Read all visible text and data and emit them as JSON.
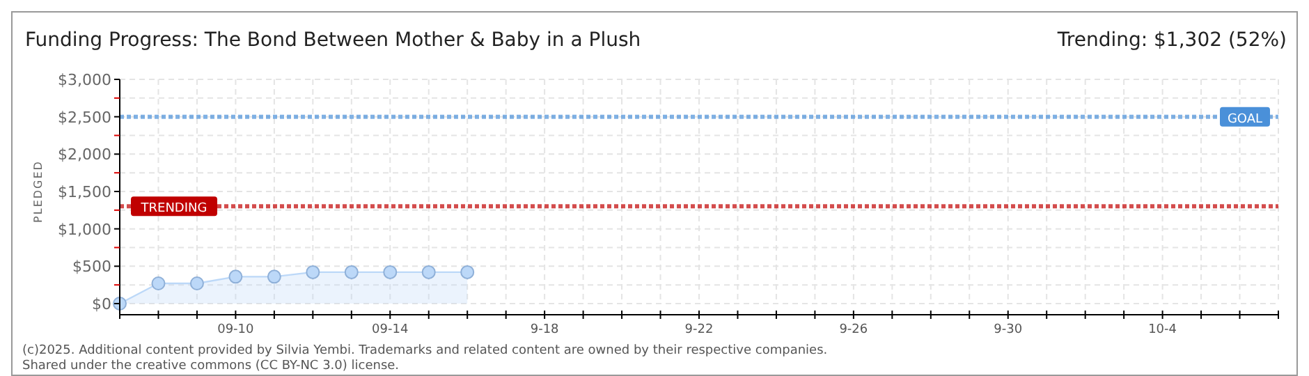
{
  "chart_data": {
    "type": "area",
    "title": "Funding Progress: The Bond Between Mother & Baby in a Plush",
    "subtitle": "Trending:  $1,302 (52%)",
    "ylabel": "PLEDGED",
    "x": [
      "--09-07",
      "--09-08",
      "--09-09",
      "--09-10",
      "--09-11",
      "--09-12",
      "--09-13",
      "--09-14",
      "--09-15",
      "--09-16"
    ],
    "series": [
      {
        "color": "#bcd8f8",
        "values": [
          0,
          270,
          270,
          360,
          360,
          420,
          420,
          420,
          420,
          420
        ]
      }
    ],
    "xlim": [
      "--09-07",
      "--10-07"
    ],
    "xticks": [
      {
        "value": "--09-07",
        "label": null
      },
      {
        "value": "--09-08",
        "label": null
      },
      {
        "value": "--09-09",
        "label": null
      },
      {
        "value": "--09-10",
        "label": "09-10"
      },
      {
        "value": "--09-11",
        "label": null
      },
      {
        "value": "--09-12",
        "label": null
      },
      {
        "value": "--09-13",
        "label": null
      },
      {
        "value": "--09-14",
        "label": "09-14"
      },
      {
        "value": "--09-15",
        "label": null
      },
      {
        "value": "--09-16",
        "label": null
      },
      {
        "value": "--09-17",
        "label": null
      },
      {
        "value": "--09-18",
        "label": "9-18"
      },
      {
        "value": "--09-19",
        "label": null
      },
      {
        "value": "--09-20",
        "label": null
      },
      {
        "value": "--09-21",
        "label": null
      },
      {
        "value": "--09-22",
        "label": "9-22"
      },
      {
        "value": "--09-23",
        "label": null
      },
      {
        "value": "--09-24",
        "label": null
      },
      {
        "value": "--09-25",
        "label": null
      },
      {
        "value": "--09-26",
        "label": "9-26"
      },
      {
        "value": "--09-27",
        "label": null
      },
      {
        "value": "--09-28",
        "label": null
      },
      {
        "value": "--09-29",
        "label": null
      },
      {
        "value": "--09-30",
        "label": "9-30"
      },
      {
        "value": "--10-01",
        "label": null
      },
      {
        "value": "--10-02",
        "label": null
      },
      {
        "value": "--10-03",
        "label": null
      },
      {
        "value": "--10-04",
        "label": "10-4"
      },
      {
        "value": "--10-05",
        "label": null
      },
      {
        "value": "--10-06",
        "label": null
      },
      {
        "value": "--10-07",
        "label": null
      }
    ],
    "ylim": [
      0,
      3000
    ],
    "yticks": [
      {
        "value": 0,
        "label": "$0"
      },
      {
        "value": 250,
        "label": null
      },
      {
        "value": 500,
        "label": "$500"
      },
      {
        "value": 750,
        "label": null
      },
      {
        "value": 1000,
        "label": "$1,000"
      },
      {
        "value": 1250,
        "label": null
      },
      {
        "value": 1500,
        "label": "$1,500"
      },
      {
        "value": 1750,
        "label": null
      },
      {
        "value": 2000,
        "label": "$2,000"
      },
      {
        "value": 2250,
        "label": null
      },
      {
        "value": 2500,
        "label": "$2,500"
      },
      {
        "value": 2750,
        "label": null
      },
      {
        "value": 3000,
        "label": "$3,000"
      }
    ],
    "grid": true,
    "marker": "circle",
    "ref_lines": [
      {
        "axis": "y",
        "value": 2500,
        "label": "GOAL",
        "color": "#4a90d9",
        "line_style": "dotted"
      },
      {
        "axis": "y",
        "value": 1302,
        "label": "TRENDING",
        "color": "#c00000",
        "line_style": "dotted"
      }
    ],
    "annotations": [
      "(c)2025. Additional content provided by Silvia Yembi. Trademarks and related content are owned by their respective companies.",
      "Shared under the creative commons (CC BY-NC 3.0) license."
    ]
  }
}
